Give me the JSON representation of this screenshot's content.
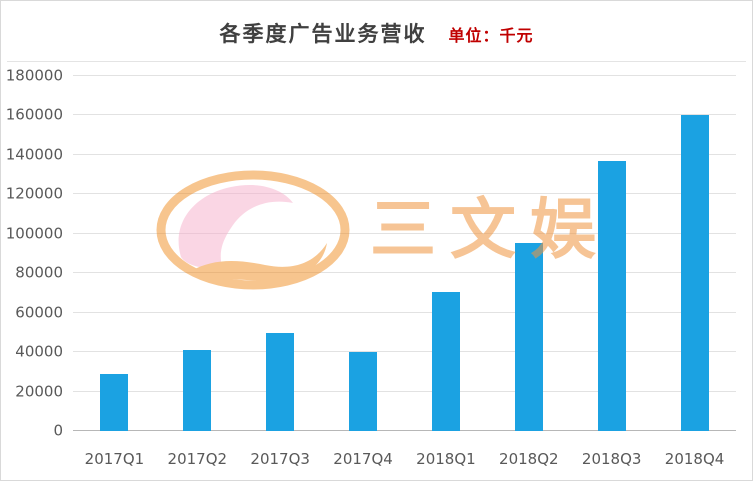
{
  "header": {
    "title": "各季度广告业务营收",
    "unit_label": "单位：千元"
  },
  "watermark": {
    "text": "三文娱"
  },
  "colors": {
    "bar": "#1BA2E2",
    "unit_text": "#C00000",
    "watermark_orange": "#F0953F",
    "watermark_pink": "#F7AECB",
    "gridline": "#E2E2E2"
  },
  "chart_data": {
    "type": "bar",
    "title": "各季度广告业务营收",
    "unit": "单位：千元",
    "categories": [
      "2017Q1",
      "2017Q2",
      "2017Q3",
      "2017Q4",
      "2018Q1",
      "2018Q2",
      "2018Q3",
      "2018Q4"
    ],
    "values": [
      29000,
      41000,
      49500,
      40000,
      70500,
      95500,
      137000,
      160000
    ],
    "xlabel": "",
    "ylabel": "",
    "ylim": [
      0,
      180000
    ],
    "ytick_step": 20000,
    "grid": true,
    "legend": false,
    "bar_color": "#1BA2E2"
  }
}
